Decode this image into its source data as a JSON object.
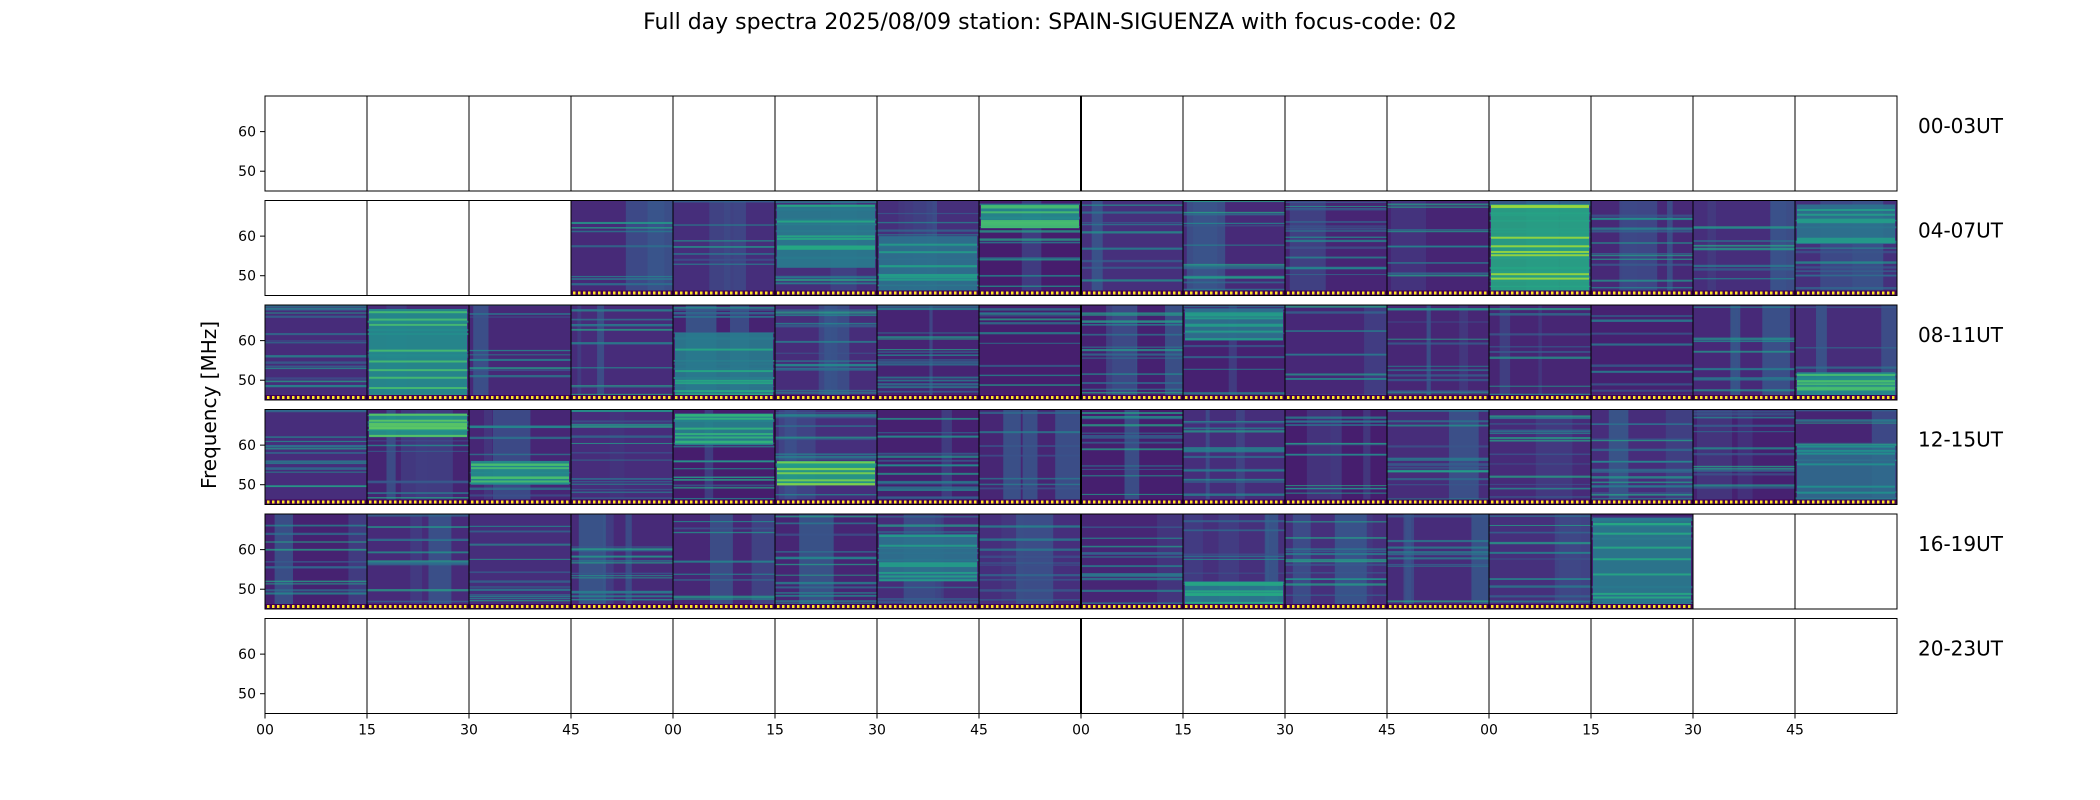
{
  "figure": {
    "title": "Full day spectra 2025/08/09 station: SPAIN-SIGUENZA with focus-code: 02"
  },
  "chart_data": {
    "type": "heatmap",
    "title": "Full day spectra 2025/08/09 station: SPAIN-SIGUENZA with focus-code: 02",
    "ylabel": "Frequency [MHz]",
    "xlabel": "",
    "y_ticks": [
      60,
      50
    ],
    "x_tick_labels": [
      "00",
      "15",
      "30",
      "45",
      "00",
      "15",
      "30",
      "45",
      "00",
      "15",
      "30",
      "45",
      "00",
      "15",
      "30",
      "45"
    ],
    "colormap": "viridis",
    "segments_per_row": 16,
    "segment_minutes": 15,
    "rows": [
      {
        "label": "00-03UT",
        "data_segments": []
      },
      {
        "label": "04-07UT",
        "data_segments": [
          3,
          4,
          5,
          6,
          7,
          8,
          9,
          10,
          11,
          12,
          13,
          14,
          15
        ]
      },
      {
        "label": "08-11UT",
        "data_segments": [
          0,
          1,
          2,
          3,
          4,
          5,
          6,
          7,
          8,
          9,
          10,
          11,
          12,
          13,
          14,
          15
        ]
      },
      {
        "label": "12-15UT",
        "data_segments": [
          0,
          1,
          2,
          3,
          4,
          5,
          6,
          7,
          8,
          9,
          10,
          11,
          12,
          13,
          14,
          15
        ]
      },
      {
        "label": "16-19UT",
        "data_segments": [
          0,
          1,
          2,
          3,
          4,
          5,
          6,
          7,
          8,
          9,
          10,
          11,
          12,
          13
        ]
      },
      {
        "label": "20-23UT",
        "data_segments": []
      }
    ],
    "bright_features": [
      {
        "row": 1,
        "segment": 5,
        "f_lo": 52,
        "f_hi": 68,
        "level": 0.6
      },
      {
        "row": 1,
        "segment": 6,
        "f_lo": 46,
        "f_hi": 60,
        "level": 0.55
      },
      {
        "row": 1,
        "segment": 7,
        "f_lo": 62,
        "f_hi": 68,
        "level": 0.7
      },
      {
        "row": 1,
        "segment": 12,
        "f_lo": 46,
        "f_hi": 68,
        "level": 0.85
      },
      {
        "row": 1,
        "segment": 15,
        "f_lo": 58,
        "f_hi": 68,
        "level": 0.55
      },
      {
        "row": 2,
        "segment": 1,
        "f_lo": 46,
        "f_hi": 68,
        "level": 0.7
      },
      {
        "row": 2,
        "segment": 4,
        "f_lo": 46,
        "f_hi": 62,
        "level": 0.6
      },
      {
        "row": 2,
        "segment": 9,
        "f_lo": 60,
        "f_hi": 68,
        "level": 0.55
      },
      {
        "row": 2,
        "segment": 15,
        "f_lo": 46,
        "f_hi": 52,
        "level": 0.7
      },
      {
        "row": 3,
        "segment": 1,
        "f_lo": 62,
        "f_hi": 68,
        "level": 0.75
      },
      {
        "row": 3,
        "segment": 2,
        "f_lo": 50,
        "f_hi": 56,
        "level": 0.7
      },
      {
        "row": 3,
        "segment": 4,
        "f_lo": 60,
        "f_hi": 68,
        "level": 0.65
      },
      {
        "row": 3,
        "segment": 5,
        "f_lo": 50,
        "f_hi": 56,
        "level": 0.8
      },
      {
        "row": 3,
        "segment": 15,
        "f_lo": 46,
        "f_hi": 60,
        "level": 0.5
      },
      {
        "row": 4,
        "segment": 6,
        "f_lo": 52,
        "f_hi": 64,
        "level": 0.55
      },
      {
        "row": 4,
        "segment": 9,
        "f_lo": 46,
        "f_hi": 52,
        "level": 0.6
      },
      {
        "row": 4,
        "segment": 13,
        "f_lo": 46,
        "f_hi": 68,
        "level": 0.6
      }
    ]
  }
}
